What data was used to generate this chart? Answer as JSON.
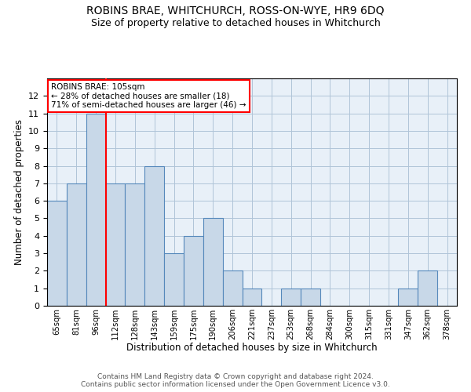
{
  "title": "ROBINS BRAE, WHITCHURCH, ROSS-ON-WYE, HR9 6DQ",
  "subtitle": "Size of property relative to detached houses in Whitchurch",
  "xlabel": "Distribution of detached houses by size in Whitchurch",
  "ylabel": "Number of detached properties",
  "categories": [
    "65sqm",
    "81sqm",
    "96sqm",
    "112sqm",
    "128sqm",
    "143sqm",
    "159sqm",
    "175sqm",
    "190sqm",
    "206sqm",
    "221sqm",
    "237sqm",
    "253sqm",
    "268sqm",
    "284sqm",
    "300sqm",
    "315sqm",
    "331sqm",
    "347sqm",
    "362sqm",
    "378sqm"
  ],
  "values": [
    6,
    7,
    11,
    7,
    7,
    8,
    3,
    4,
    5,
    2,
    1,
    0,
    1,
    1,
    0,
    0,
    0,
    0,
    1,
    2,
    0
  ],
  "bar_color": "#c8d8e8",
  "bar_edge_color": "#5588bb",
  "vline_x": 2.5,
  "vline_color": "red",
  "annotation_title": "ROBINS BRAE: 105sqm",
  "annotation_line1": "← 28% of detached houses are smaller (18)",
  "annotation_line2": "71% of semi-detached houses are larger (46) →",
  "annotation_box_color": "red",
  "ylim": [
    0,
    13
  ],
  "yticks": [
    0,
    1,
    2,
    3,
    4,
    5,
    6,
    7,
    8,
    9,
    10,
    11,
    12,
    13
  ],
  "footer": "Contains HM Land Registry data © Crown copyright and database right 2024.\nContains public sector information licensed under the Open Government Licence v3.0.",
  "grid_color": "#b0c4d8",
  "background_color": "#e8f0f8"
}
